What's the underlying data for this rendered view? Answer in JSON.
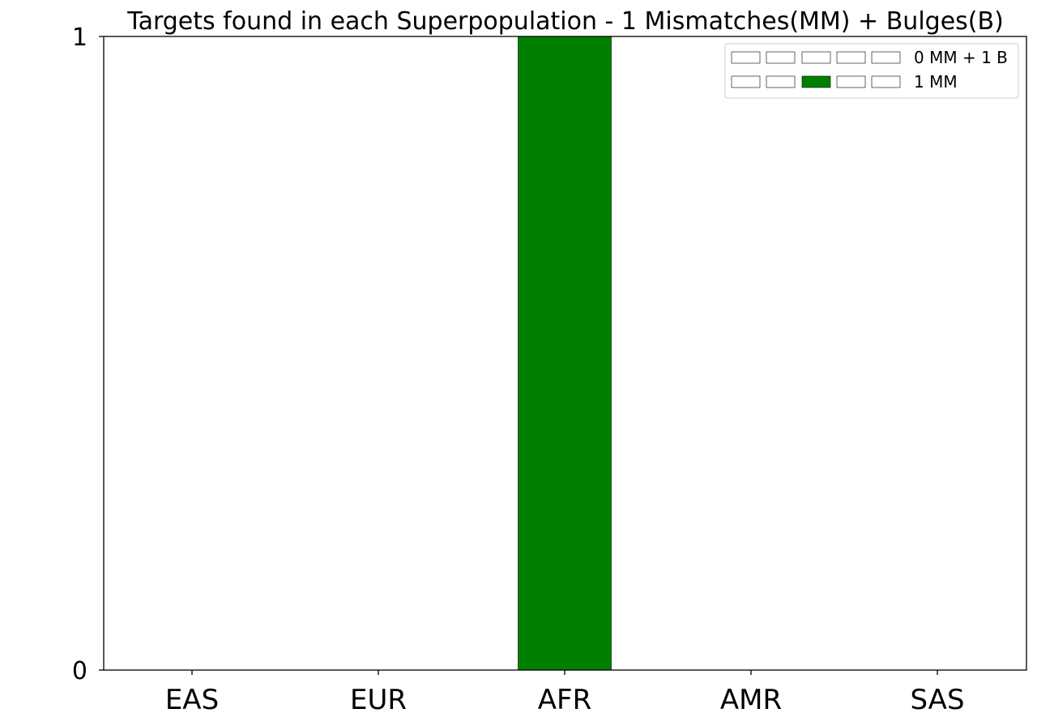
{
  "chart_data": {
    "type": "bar",
    "title": "Targets found in each Superpopulation - 1 Mismatches(MM) + Bulges(B)",
    "xlabel": "",
    "ylabel": "",
    "categories": [
      "EAS",
      "EUR",
      "AFR",
      "AMR",
      "SAS"
    ],
    "series": [
      {
        "name": "0 MM + 1 B",
        "values": [
          0,
          0,
          0,
          0,
          0
        ],
        "color": "#ffffff"
      },
      {
        "name": "1 MM",
        "values": [
          0,
          0,
          1,
          0,
          0
        ],
        "color": "#008000"
      }
    ],
    "ylim": [
      0,
      1
    ],
    "yticks": [
      0,
      1
    ],
    "grid": false,
    "legend_position": "top-right",
    "legend_swatch_colors": {
      "0 MM + 1 B": [
        "#ffffff",
        "#ffffff",
        "#ffffff",
        "#ffffff",
        "#ffffff"
      ],
      "1 MM": [
        "#ffffff",
        "#ffffff",
        "#008000",
        "#ffffff",
        "#ffffff"
      ]
    }
  }
}
